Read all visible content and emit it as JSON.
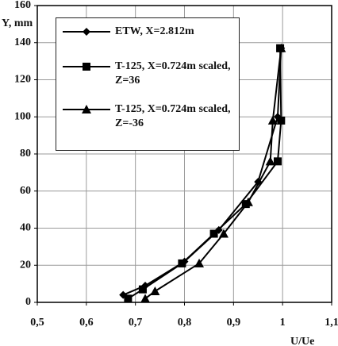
{
  "chart_data": {
    "type": "line",
    "x_label": "U/Ue",
    "y_label": "Y, mm",
    "xlim": [
      0.5,
      1.1
    ],
    "xticks": [
      {
        "value": 0.5,
        "label": "0,5"
      },
      {
        "value": 0.6,
        "label": "0,6"
      },
      {
        "value": 0.7,
        "label": "0,7"
      },
      {
        "value": 0.8,
        "label": "0,8"
      },
      {
        "value": 0.9,
        "label": "0,9"
      },
      1,
      {
        "value": 1.1,
        "label": "1,1"
      }
    ],
    "ylim": [
      0,
      160
    ],
    "yticks": [
      0,
      20,
      40,
      60,
      80,
      100,
      120,
      140,
      160
    ],
    "grid": true,
    "legend": "upper left",
    "series": [
      {
        "name": "ETW, X=2.812m",
        "color": "#000000",
        "marker": "diamond",
        "x": [
          0.675,
          0.72,
          0.8,
          0.87,
          0.95,
          0.99,
          0.997
        ],
        "values": [
          4,
          9,
          22,
          39,
          65,
          100,
          137
        ]
      },
      {
        "name": "T-125, X=0.724m scaled, Z=36",
        "color": "#000000",
        "marker": "square",
        "x": [
          0.685,
          0.715,
          0.795,
          0.86,
          0.925,
          0.99,
          0.997,
          0.995
        ],
        "values": [
          2,
          7,
          21,
          37,
          53,
          76,
          98,
          137
        ]
      },
      {
        "name": "T-125, X=0.724m scaled, Z=-36",
        "color": "#000000",
        "marker": "triangle",
        "x": [
          0.72,
          0.74,
          0.83,
          0.88,
          0.93,
          0.975,
          0.98,
          0.997
        ],
        "values": [
          2,
          6,
          21,
          37,
          54,
          76,
          98,
          137
        ]
      }
    ]
  }
}
